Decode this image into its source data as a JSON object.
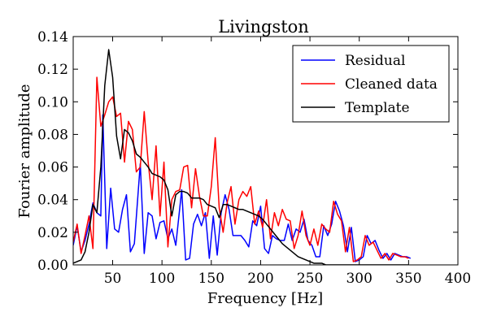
{
  "chart_data": {
    "type": "line",
    "title": "Livingston",
    "xlabel": "Frequency [Hz]",
    "ylabel": "Fourier amplitude",
    "xlim": [
      10,
      400
    ],
    "ylim": [
      0,
      0.14
    ],
    "x_ticks": [
      50,
      100,
      150,
      200,
      250,
      300,
      350,
      400
    ],
    "y_ticks": [
      0.0,
      0.02,
      0.04,
      0.06,
      0.08,
      0.1,
      0.12,
      0.14
    ],
    "x_tick_labels": [
      "50",
      "100",
      "150",
      "200",
      "250",
      "300",
      "350",
      "400"
    ],
    "y_tick_labels": [
      "0.00",
      "0.02",
      "0.04",
      "0.06",
      "0.08",
      "0.10",
      "0.12",
      "0.14"
    ],
    "grid": false,
    "legend_position": "top-right",
    "series": [
      {
        "name": "Residual",
        "color": "#0000ff",
        "points": [
          [
            10,
            0.012
          ],
          [
            14,
            0.024
          ],
          [
            18,
            0.008
          ],
          [
            22,
            0.015
          ],
          [
            26,
            0.025
          ],
          [
            30,
            0.038
          ],
          [
            34,
            0.032
          ],
          [
            38,
            0.03
          ],
          [
            40,
            0.092
          ],
          [
            44,
            0.01
          ],
          [
            48,
            0.047
          ],
          [
            52,
            0.022
          ],
          [
            56,
            0.02
          ],
          [
            60,
            0.034
          ],
          [
            64,
            0.043
          ],
          [
            68,
            0.008
          ],
          [
            72,
            0.013
          ],
          [
            78,
            0.062
          ],
          [
            82,
            0.007
          ],
          [
            86,
            0.032
          ],
          [
            90,
            0.03
          ],
          [
            94,
            0.016
          ],
          [
            98,
            0.026
          ],
          [
            102,
            0.027
          ],
          [
            106,
            0.016
          ],
          [
            110,
            0.022
          ],
          [
            114,
            0.012
          ],
          [
            120,
            0.046
          ],
          [
            124,
            0.003
          ],
          [
            128,
            0.004
          ],
          [
            132,
            0.025
          ],
          [
            136,
            0.031
          ],
          [
            140,
            0.024
          ],
          [
            144,
            0.032
          ],
          [
            148,
            0.004
          ],
          [
            152,
            0.03
          ],
          [
            156,
            0.006
          ],
          [
            160,
            0.032
          ],
          [
            164,
            0.043
          ],
          [
            168,
            0.034
          ],
          [
            172,
            0.018
          ],
          [
            176,
            0.018
          ],
          [
            180,
            0.018
          ],
          [
            184,
            0.015
          ],
          [
            188,
            0.011
          ],
          [
            192,
            0.027
          ],
          [
            196,
            0.024
          ],
          [
            200,
            0.036
          ],
          [
            204,
            0.01
          ],
          [
            208,
            0.007
          ],
          [
            212,
            0.018
          ],
          [
            216,
            0.016
          ],
          [
            220,
            0.015
          ],
          [
            224,
            0.015
          ],
          [
            228,
            0.025
          ],
          [
            232,
            0.015
          ],
          [
            236,
            0.022
          ],
          [
            240,
            0.02
          ],
          [
            244,
            0.028
          ],
          [
            248,
            0.015
          ],
          [
            252,
            0.012
          ],
          [
            256,
            0.005
          ],
          [
            260,
            0.005
          ],
          [
            264,
            0.024
          ],
          [
            268,
            0.018
          ],
          [
            272,
            0.025
          ],
          [
            276,
            0.039
          ],
          [
            280,
            0.033
          ],
          [
            284,
            0.024
          ],
          [
            288,
            0.008
          ],
          [
            292,
            0.023
          ],
          [
            296,
            0.002
          ],
          [
            300,
            0.003
          ],
          [
            304,
            0.005
          ],
          [
            308,
            0.018
          ],
          [
            312,
            0.013
          ],
          [
            316,
            0.015
          ],
          [
            320,
            0.009
          ],
          [
            324,
            0.004
          ],
          [
            328,
            0.007
          ],
          [
            332,
            0.003
          ],
          [
            336,
            0.007
          ],
          [
            340,
            0.006
          ],
          [
            344,
            0.005
          ],
          [
            348,
            0.005
          ],
          [
            352,
            0.004
          ]
        ]
      },
      {
        "name": "Cleaned data",
        "color": "#ff0000",
        "points": [
          [
            10,
            0.014
          ],
          [
            14,
            0.025
          ],
          [
            18,
            0.007
          ],
          [
            22,
            0.018
          ],
          [
            26,
            0.03
          ],
          [
            30,
            0.01
          ],
          [
            34,
            0.115
          ],
          [
            38,
            0.085
          ],
          [
            42,
            0.092
          ],
          [
            46,
            0.1
          ],
          [
            50,
            0.103
          ],
          [
            54,
            0.091
          ],
          [
            58,
            0.093
          ],
          [
            62,
            0.063
          ],
          [
            66,
            0.088
          ],
          [
            70,
            0.083
          ],
          [
            74,
            0.057
          ],
          [
            78,
            0.06
          ],
          [
            82,
            0.094
          ],
          [
            86,
            0.063
          ],
          [
            90,
            0.04
          ],
          [
            94,
            0.073
          ],
          [
            98,
            0.03
          ],
          [
            102,
            0.063
          ],
          [
            106,
            0.011
          ],
          [
            110,
            0.04
          ],
          [
            114,
            0.045
          ],
          [
            118,
            0.046
          ],
          [
            122,
            0.06
          ],
          [
            126,
            0.061
          ],
          [
            130,
            0.035
          ],
          [
            134,
            0.059
          ],
          [
            138,
            0.042
          ],
          [
            142,
            0.03
          ],
          [
            146,
            0.03
          ],
          [
            150,
            0.048
          ],
          [
            154,
            0.078
          ],
          [
            158,
            0.035
          ],
          [
            162,
            0.02
          ],
          [
            166,
            0.038
          ],
          [
            170,
            0.048
          ],
          [
            174,
            0.025
          ],
          [
            178,
            0.04
          ],
          [
            182,
            0.045
          ],
          [
            186,
            0.042
          ],
          [
            190,
            0.048
          ],
          [
            194,
            0.025
          ],
          [
            198,
            0.033
          ],
          [
            202,
            0.023
          ],
          [
            206,
            0.04
          ],
          [
            210,
            0.016
          ],
          [
            214,
            0.032
          ],
          [
            218,
            0.024
          ],
          [
            222,
            0.034
          ],
          [
            226,
            0.028
          ],
          [
            230,
            0.027
          ],
          [
            234,
            0.01
          ],
          [
            238,
            0.018
          ],
          [
            242,
            0.033
          ],
          [
            246,
            0.018
          ],
          [
            250,
            0.012
          ],
          [
            254,
            0.022
          ],
          [
            258,
            0.012
          ],
          [
            262,
            0.025
          ],
          [
            266,
            0.022
          ],
          [
            270,
            0.02
          ],
          [
            274,
            0.039
          ],
          [
            278,
            0.031
          ],
          [
            282,
            0.027
          ],
          [
            286,
            0.008
          ],
          [
            290,
            0.023
          ],
          [
            294,
            0.002
          ],
          [
            298,
            0.003
          ],
          [
            302,
            0.005
          ],
          [
            306,
            0.018
          ],
          [
            310,
            0.012
          ],
          [
            314,
            0.014
          ],
          [
            318,
            0.009
          ],
          [
            322,
            0.004
          ],
          [
            326,
            0.007
          ],
          [
            330,
            0.003
          ],
          [
            334,
            0.007
          ],
          [
            338,
            0.006
          ],
          [
            342,
            0.005
          ],
          [
            346,
            0.005
          ],
          [
            350,
            0.004
          ]
        ]
      },
      {
        "name": "Template",
        "color": "#000000",
        "points": [
          [
            10,
            0.001
          ],
          [
            14,
            0.002
          ],
          [
            18,
            0.003
          ],
          [
            22,
            0.008
          ],
          [
            26,
            0.02
          ],
          [
            30,
            0.037
          ],
          [
            34,
            0.032
          ],
          [
            38,
            0.06
          ],
          [
            42,
            0.11
          ],
          [
            46,
            0.132
          ],
          [
            50,
            0.115
          ],
          [
            54,
            0.079
          ],
          [
            58,
            0.065
          ],
          [
            62,
            0.083
          ],
          [
            66,
            0.081
          ],
          [
            70,
            0.076
          ],
          [
            74,
            0.068
          ],
          [
            78,
            0.066
          ],
          [
            82,
            0.063
          ],
          [
            86,
            0.06
          ],
          [
            90,
            0.056
          ],
          [
            94,
            0.055
          ],
          [
            98,
            0.054
          ],
          [
            102,
            0.052
          ],
          [
            106,
            0.046
          ],
          [
            110,
            0.03
          ],
          [
            114,
            0.043
          ],
          [
            118,
            0.045
          ],
          [
            122,
            0.045
          ],
          [
            126,
            0.044
          ],
          [
            130,
            0.041
          ],
          [
            134,
            0.041
          ],
          [
            138,
            0.041
          ],
          [
            142,
            0.04
          ],
          [
            146,
            0.037
          ],
          [
            150,
            0.036
          ],
          [
            154,
            0.035
          ],
          [
            158,
            0.029
          ],
          [
            162,
            0.037
          ],
          [
            166,
            0.037
          ],
          [
            170,
            0.036
          ],
          [
            174,
            0.035
          ],
          [
            178,
            0.034
          ],
          [
            182,
            0.034
          ],
          [
            186,
            0.033
          ],
          [
            190,
            0.032
          ],
          [
            194,
            0.031
          ],
          [
            198,
            0.03
          ],
          [
            202,
            0.028
          ],
          [
            206,
            0.025
          ],
          [
            210,
            0.022
          ],
          [
            214,
            0.019
          ],
          [
            218,
            0.016
          ],
          [
            222,
            0.013
          ],
          [
            226,
            0.011
          ],
          [
            230,
            0.009
          ],
          [
            234,
            0.007
          ],
          [
            238,
            0.005
          ],
          [
            242,
            0.004
          ],
          [
            246,
            0.003
          ],
          [
            250,
            0.002
          ],
          [
            254,
            0.001
          ],
          [
            258,
            0.001
          ],
          [
            262,
            0.001
          ],
          [
            266,
            0.0
          ],
          [
            270,
            0.0
          ],
          [
            274,
            0.0
          ],
          [
            278,
            0.0
          ],
          [
            282,
            0.0
          ],
          [
            286,
            0.0
          ],
          [
            290,
            0.0
          ],
          [
            294,
            0.0
          ],
          [
            298,
            0.0
          ],
          [
            302,
            0.0
          ],
          [
            306,
            0.0
          ],
          [
            310,
            0.0
          ],
          [
            314,
            0.0
          ],
          [
            318,
            0.0
          ],
          [
            322,
            0.0
          ],
          [
            326,
            0.0
          ],
          [
            330,
            0.0
          ],
          [
            334,
            0.0
          ],
          [
            338,
            0.0
          ],
          [
            342,
            0.0
          ],
          [
            346,
            0.0
          ],
          [
            350,
            0.0
          ]
        ]
      }
    ]
  }
}
